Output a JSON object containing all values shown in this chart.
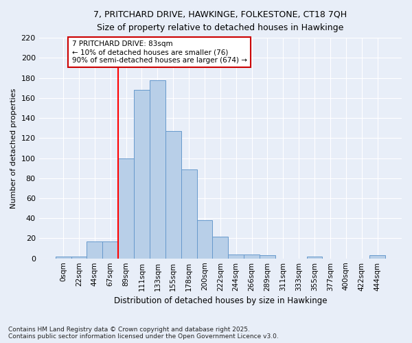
{
  "title_line1": "7, PRITCHARD DRIVE, HAWKINGE, FOLKESTONE, CT18 7QH",
  "title_line2": "Size of property relative to detached houses in Hawkinge",
  "xlabel": "Distribution of detached houses by size in Hawkinge",
  "ylabel": "Number of detached properties",
  "bar_labels": [
    "0sqm",
    "22sqm",
    "44sqm",
    "67sqm",
    "89sqm",
    "111sqm",
    "133sqm",
    "155sqm",
    "178sqm",
    "200sqm",
    "222sqm",
    "244sqm",
    "266sqm",
    "289sqm",
    "311sqm",
    "333sqm",
    "355sqm",
    "377sqm",
    "400sqm",
    "422sqm",
    "444sqm"
  ],
  "bar_values": [
    2,
    2,
    17,
    17,
    100,
    168,
    178,
    127,
    89,
    38,
    22,
    4,
    4,
    3,
    0,
    0,
    2,
    0,
    0,
    0,
    3
  ],
  "bar_color": "#b8cfe8",
  "bar_edge_color": "#6699cc",
  "bg_color": "#e8eef8",
  "grid_color": "#ffffff",
  "red_line_index": 4,
  "annotation_text": "7 PRITCHARD DRIVE: 83sqm\n← 10% of detached houses are smaller (76)\n90% of semi-detached houses are larger (674) →",
  "annotation_box_facecolor": "#ffffff",
  "annotation_box_edgecolor": "#cc0000",
  "footer_line1": "Contains HM Land Registry data © Crown copyright and database right 2025.",
  "footer_line2": "Contains public sector information licensed under the Open Government Licence v3.0.",
  "ylim": [
    0,
    220
  ],
  "yticks": [
    0,
    20,
    40,
    60,
    80,
    100,
    120,
    140,
    160,
    180,
    200,
    220
  ]
}
